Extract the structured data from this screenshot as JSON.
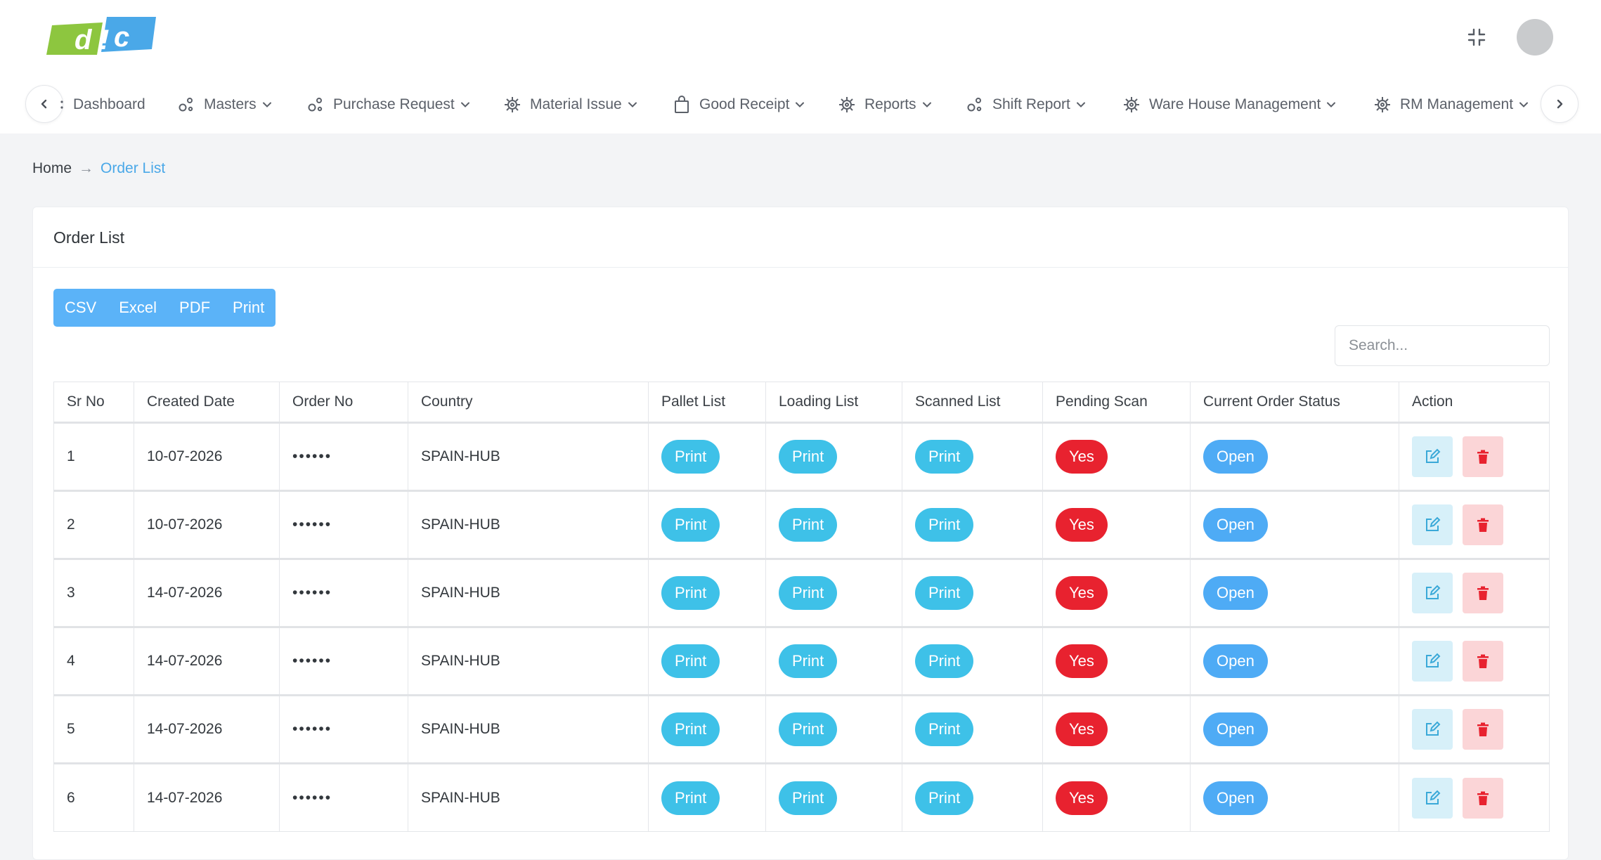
{
  "brand": {
    "logo_text": "dic",
    "logo_colors": [
      "#8dc63f",
      "#4aa8e8"
    ]
  },
  "nav": {
    "items": [
      {
        "label": "Dashboard",
        "icon": "dashboard-icon",
        "dropdown": false
      },
      {
        "label": "Masters",
        "icon": "nodes-icon",
        "dropdown": true
      },
      {
        "label": "Purchase Request",
        "icon": "nodes-icon",
        "dropdown": true
      },
      {
        "label": "Material Issue",
        "icon": "gear-icon",
        "dropdown": true
      },
      {
        "label": "Good Receipt",
        "icon": "shopping-bag-icon",
        "dropdown": true
      },
      {
        "label": "Reports",
        "icon": "gear-icon",
        "dropdown": true
      },
      {
        "label": "Shift Report",
        "icon": "nodes-icon",
        "dropdown": true
      },
      {
        "label": "Ware House Management",
        "icon": "gear-icon",
        "dropdown": true
      },
      {
        "label": "RM Management",
        "icon": "gear-icon",
        "dropdown": true
      }
    ]
  },
  "breadcrumb": {
    "home": "Home",
    "separator": "→",
    "current": "Order List"
  },
  "card": {
    "title": "Order List",
    "export_buttons": [
      "CSV",
      "Excel",
      "PDF",
      "Print"
    ],
    "search_placeholder": "Search..."
  },
  "table": {
    "columns": [
      "Sr No",
      "Created Date",
      "Order No",
      "Country",
      "Pallet List",
      "Loading List",
      "Scanned List",
      "Pending Scan",
      "Current Order Status",
      "Action"
    ],
    "rows": [
      {
        "sr": "1",
        "date": "10-07-2026",
        "order_no": "••••••",
        "country": "SPAIN-HUB",
        "pallet": "Print",
        "loading": "Print",
        "scanned": "Print",
        "pending": "Yes",
        "status": "Open"
      },
      {
        "sr": "2",
        "date": "10-07-2026",
        "order_no": "••••••",
        "country": "SPAIN-HUB",
        "pallet": "Print",
        "loading": "Print",
        "scanned": "Print",
        "pending": "Yes",
        "status": "Open"
      },
      {
        "sr": "3",
        "date": "14-07-2026",
        "order_no": "••••••",
        "country": "SPAIN-HUB",
        "pallet": "Print",
        "loading": "Print",
        "scanned": "Print",
        "pending": "Yes",
        "status": "Open"
      },
      {
        "sr": "4",
        "date": "14-07-2026",
        "order_no": "••••••",
        "country": "SPAIN-HUB",
        "pallet": "Print",
        "loading": "Print",
        "scanned": "Print",
        "pending": "Yes",
        "status": "Open"
      },
      {
        "sr": "5",
        "date": "14-07-2026",
        "order_no": "••••••",
        "country": "SPAIN-HUB",
        "pallet": "Print",
        "loading": "Print",
        "scanned": "Print",
        "pending": "Yes",
        "status": "Open"
      },
      {
        "sr": "6",
        "date": "14-07-2026",
        "order_no": "••••••",
        "country": "SPAIN-HUB",
        "pallet": "Print",
        "loading": "Print",
        "scanned": "Print",
        "pending": "Yes",
        "status": "Open"
      }
    ]
  },
  "colors": {
    "print": "#3ec1e8",
    "yes": "#e8222f",
    "open": "#4eabf5",
    "export": "#5bb3f8",
    "link": "#4aa8e8"
  }
}
